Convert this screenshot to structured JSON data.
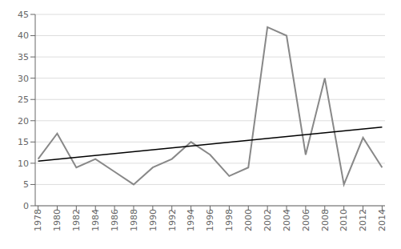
{
  "chart_data": {
    "type": "line",
    "x": [
      1978,
      1980,
      1982,
      1984,
      1986,
      1988,
      1990,
      1992,
      1994,
      1996,
      1998,
      2000,
      2002,
      2004,
      2006,
      2008,
      2010,
      2012,
      2014
    ],
    "series": [
      {
        "color": "#888888",
        "values": [
          11,
          17,
          9,
          11,
          8,
          5,
          9,
          11,
          15,
          12,
          7,
          9,
          42,
          40,
          12,
          30,
          5,
          16,
          9
        ]
      },
      {
        "color": "#000000",
        "x": [
          1978,
          2014
        ],
        "values": [
          10.5,
          18.5
        ]
      }
    ],
    "xlim": [
      1977.7,
      2014.3
    ],
    "xticks": [
      1978,
      1980,
      1982,
      1984,
      1986,
      1988,
      1990,
      1992,
      1994,
      1996,
      1998,
      2000,
      2002,
      2004,
      2006,
      2008,
      2010,
      2012,
      2014
    ],
    "ylim": [
      0,
      45
    ],
    "yticks": [
      0,
      5,
      10,
      15,
      20,
      25,
      30,
      35,
      40,
      45
    ],
    "grid": "y"
  }
}
